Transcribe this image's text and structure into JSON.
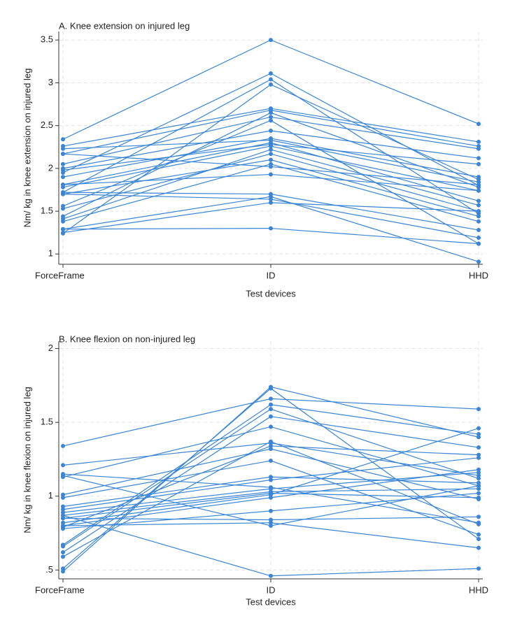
{
  "chart_data": [
    {
      "type": "line",
      "title": "A. Knee extension on injured leg",
      "xlabel": "Test devices",
      "ylabel": "Nm/ kg in knee extension on injured leg",
      "categories": [
        "ForceFrame",
        "ID",
        "HHD"
      ],
      "color": "#3a85d6",
      "grid": true,
      "ylim": [
        0.88,
        3.6
      ],
      "yticks": [
        1,
        1.5,
        2,
        2.5,
        3,
        3.5
      ],
      "series": [
        {
          "values": [
            2.34,
            3.5,
            2.52
          ]
        },
        {
          "values": [
            1.95,
            3.11,
            1.8
          ]
        },
        {
          "values": [
            1.72,
            3.04,
            1.47
          ]
        },
        {
          "values": [
            1.24,
            2.98,
            1.87
          ]
        },
        {
          "values": [
            2.26,
            2.7,
            2.31
          ]
        },
        {
          "values": [
            2.17,
            2.68,
            2.26
          ]
        },
        {
          "values": [
            1.44,
            2.65,
            1.78
          ]
        },
        {
          "values": [
            2.05,
            2.6,
            2.23
          ]
        },
        {
          "values": [
            1.56,
            2.56,
            1.12
          ]
        },
        {
          "values": [
            2.0,
            2.44,
            2.12
          ]
        },
        {
          "values": [
            1.9,
            2.35,
            1.9
          ]
        },
        {
          "values": [
            2.23,
            2.33,
            1.84
          ]
        },
        {
          "values": [
            1.81,
            2.3,
            1.62
          ]
        },
        {
          "values": [
            1.98,
            2.28,
            2.05
          ]
        },
        {
          "values": [
            1.78,
            2.26,
            1.74
          ]
        },
        {
          "values": [
            1.41,
            2.22,
            1.57
          ]
        },
        {
          "values": [
            1.53,
            2.17,
            1.5
          ]
        },
        {
          "values": [
            1.7,
            2.1,
            1.44
          ]
        },
        {
          "values": [
            1.38,
            2.05,
            1.38
          ]
        },
        {
          "values": [
            2.17,
            2.02,
            1.81
          ]
        },
        {
          "values": [
            1.81,
            1.93,
            1.74
          ]
        },
        {
          "values": [
            1.72,
            1.7,
            1.28
          ]
        },
        {
          "values": [
            1.29,
            1.67,
            0.91
          ]
        },
        {
          "values": [
            1.7,
            1.64,
            1.19
          ]
        },
        {
          "values": [
            1.25,
            1.6,
            1.5
          ]
        },
        {
          "values": [
            1.29,
            1.3,
            1.12
          ]
        }
      ]
    },
    {
      "type": "line",
      "title": "B. Knee flexion on non-injured leg",
      "xlabel": "Test devices",
      "ylabel": "Nm/ kg in knee flexion on injured leg",
      "categories": [
        "ForceFrame",
        "ID",
        "HHD"
      ],
      "color": "#3a85d6",
      "grid": true,
      "ylim": [
        0.44,
        2.05
      ],
      "yticks": [
        {
          "value": 0.5,
          "label": ".5"
        },
        1,
        1.5,
        2
      ],
      "series": [
        {
          "values": [
            1.34,
            1.66,
            1.59
          ]
        },
        {
          "values": [
            1.21,
            1.36,
            1.14
          ]
        },
        {
          "values": [
            1.15,
            1.06,
            0.82
          ]
        },
        {
          "values": [
            1.13,
            1.47,
            1.07
          ]
        },
        {
          "values": [
            0.49,
            1.74,
            1.4
          ]
        },
        {
          "values": [
            0.51,
            1.73,
            0.71
          ]
        },
        {
          "values": [
            0.67,
            1.62,
            1.42
          ]
        },
        {
          "values": [
            0.66,
            1.59,
            1.12
          ]
        },
        {
          "values": [
            0.62,
            1.54,
            1.33
          ]
        },
        {
          "values": [
            0.59,
            1.37,
            0.81
          ]
        },
        {
          "values": [
            0.79,
            1.34,
            1.28
          ]
        },
        {
          "values": [
            1.01,
            1.32,
            0.98
          ]
        },
        {
          "values": [
            0.99,
            1.24,
            0.74
          ]
        },
        {
          "values": [
            0.93,
            1.13,
            1.09
          ]
        },
        {
          "values": [
            0.91,
            1.11,
            1.26
          ]
        },
        {
          "values": [
            0.89,
            1.05,
            1.16
          ]
        },
        {
          "values": [
            0.87,
            1.03,
            1.05
          ]
        },
        {
          "values": [
            0.85,
            1.02,
            0.99
          ]
        },
        {
          "values": [
            0.82,
            1.01,
            1.46
          ]
        },
        {
          "values": [
            0.8,
            0.99,
            1.18
          ]
        },
        {
          "values": [
            0.78,
            0.9,
            1.02
          ]
        },
        {
          "values": [
            0.85,
            0.84,
            0.86
          ]
        },
        {
          "values": [
            0.8,
            0.82,
            0.65
          ]
        },
        {
          "values": [
            1.14,
            0.8,
            1.07
          ]
        },
        {
          "values": [
            0.87,
            0.46,
            0.51
          ]
        }
      ]
    }
  ]
}
